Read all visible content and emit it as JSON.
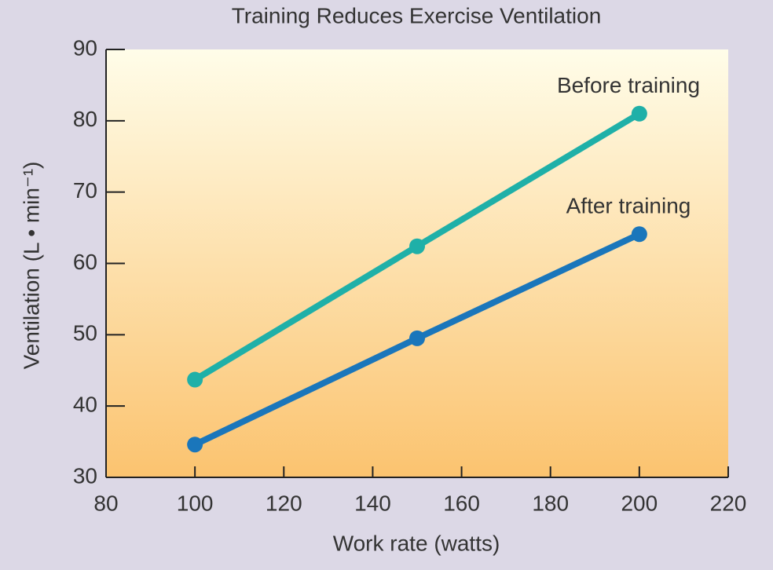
{
  "chart_data": {
    "type": "line",
    "title": "Training Reduces Exercise Ventilation",
    "xlabel": "Work rate (watts)",
    "ylabel": "Ventilation (L • min⁻¹)",
    "x": [
      100,
      150,
      200
    ],
    "series": [
      {
        "name": "Before training",
        "color": "#1fb0a8",
        "values": [
          43.7,
          62.4,
          81
        ]
      },
      {
        "name": "After training",
        "color": "#1a76bb",
        "values": [
          34.6,
          49.5,
          64.1
        ]
      }
    ],
    "xlim": [
      80,
      220
    ],
    "xticks": [
      80,
      100,
      120,
      140,
      160,
      180,
      200,
      220
    ],
    "ylim": [
      30,
      90
    ],
    "yticks": [
      30,
      40,
      50,
      60,
      70,
      80,
      90
    ]
  }
}
